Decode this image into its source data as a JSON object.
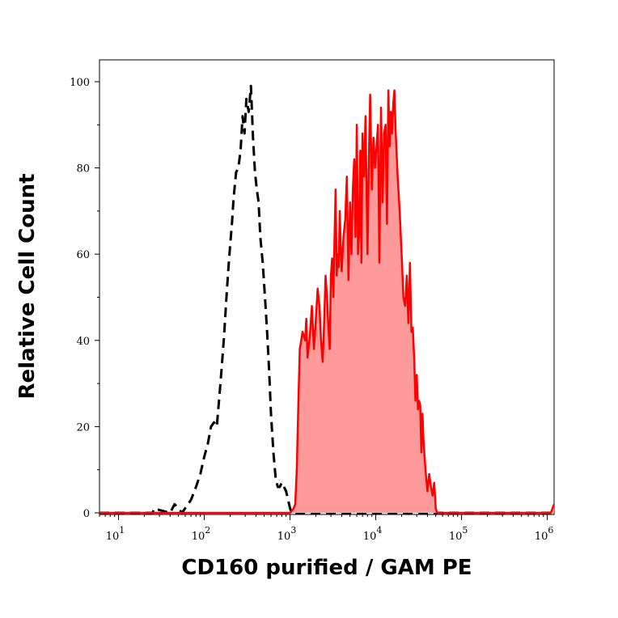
{
  "chart_data": {
    "type": "area",
    "xlabel": "CD160 purified / GAM PE",
    "ylabel": "Relative Cell Count",
    "x_scale": "log",
    "xlim": [
      6,
      1200000
    ],
    "ylim": [
      0,
      105
    ],
    "grid": false,
    "legend": "none",
    "x_ticks": [
      {
        "base": "10",
        "exp": "1",
        "value": 10
      },
      {
        "base": "10",
        "exp": "2",
        "value": 100
      },
      {
        "base": "10",
        "exp": "3",
        "value": 1000
      },
      {
        "base": "10",
        "exp": "4",
        "value": 10000
      },
      {
        "base": "10",
        "exp": "5",
        "value": 100000
      },
      {
        "base": "10",
        "exp": "6",
        "value": 1000000
      }
    ],
    "y_ticks": [
      {
        "label": "0",
        "value": 0
      },
      {
        "label": "20",
        "value": 20
      },
      {
        "label": "40",
        "value": 40
      },
      {
        "label": "60",
        "value": 60
      },
      {
        "label": "80",
        "value": 80
      },
      {
        "label": "100",
        "value": 100
      }
    ],
    "series": [
      {
        "style": "dashed",
        "color": "#000000",
        "x": [
          6,
          25,
          26,
          40,
          45,
          50,
          55,
          70,
          80,
          90,
          100,
          110,
          120,
          130,
          140,
          150,
          160,
          170,
          180,
          190,
          200,
          210,
          220,
          235,
          250,
          265,
          280,
          295,
          310,
          330,
          350,
          370,
          390,
          410,
          430,
          450,
          480,
          510,
          540,
          570,
          600,
          640,
          680,
          720,
          760,
          800,
          850,
          900,
          950,
          1000,
          1050,
          1100,
          1200,
          1300,
          1500,
          2000,
          3000,
          5000,
          8000,
          15000,
          20000,
          50000,
          1200000
        ],
        "y": [
          0,
          0,
          1,
          0,
          2,
          1,
          0,
          3,
          6,
          9,
          13,
          16,
          20,
          21,
          20,
          27,
          34,
          41,
          49,
          56,
          62,
          67,
          73,
          79,
          80,
          84,
          92,
          88,
          96,
          93,
          99,
          87,
          79,
          75,
          72,
          64,
          58,
          50,
          42,
          33,
          23,
          14,
          8,
          6,
          6,
          7,
          6,
          5,
          3,
          1,
          0,
          0,
          0,
          0,
          0,
          0,
          0,
          0,
          0,
          0,
          0,
          0,
          0
        ]
      },
      {
        "style": "filled",
        "color": "#ff0000",
        "fill": "#ff9a9a",
        "x": [
          6,
          1000,
          1100,
          1150,
          1200,
          1250,
          1300,
          1350,
          1400,
          1500,
          1550,
          1600,
          1700,
          1800,
          1900,
          2000,
          2100,
          2200,
          2300,
          2400,
          2500,
          2600,
          2700,
          2800,
          2900,
          3000,
          3100,
          3200,
          3300,
          3400,
          3500,
          3600,
          3700,
          3800,
          3900,
          4000,
          4200,
          4400,
          4600,
          4800,
          5000,
          5200,
          5400,
          5600,
          5800,
          6000,
          6200,
          6400,
          6600,
          6800,
          7000,
          7300,
          7600,
          8000,
          8300,
          8600,
          9000,
          9400,
          9800,
          10200,
          10600,
          11000,
          11500,
          12000,
          12500,
          13000,
          13500,
          14000,
          14500,
          15000,
          15500,
          16000,
          16500,
          17000,
          18000,
          19000,
          20000,
          21000,
          22000,
          23000,
          24000,
          25000,
          26000,
          27000,
          28000,
          29000,
          30000,
          31000,
          32000,
          33000,
          34000,
          35000,
          36000,
          38000,
          40000,
          42000,
          44000,
          46000,
          48000,
          50000,
          52000,
          55000,
          60000,
          80000,
          95000,
          100000,
          105000,
          120000,
          150000,
          170000,
          180000,
          190000,
          200000,
          215000,
          230000,
          300000,
          500000,
          1000000,
          1100000,
          1200000
        ],
        "y": [
          0,
          0,
          1,
          2,
          10,
          25,
          38,
          40,
          42,
          40,
          45,
          36,
          41,
          48,
          38,
          45,
          52,
          48,
          40,
          35,
          44,
          55,
          50,
          43,
          38,
          55,
          59,
          50,
          63,
          75,
          55,
          60,
          57,
          70,
          62,
          56,
          64,
          68,
          78,
          54,
          72,
          60,
          75,
          82,
          64,
          90,
          60,
          65,
          84,
          58,
          88,
          78,
          92,
          60,
          82,
          97,
          75,
          87,
          80,
          85,
          90,
          58,
          94,
          72,
          88,
          90,
          67,
          98,
          85,
          93,
          88,
          95,
          98,
          89,
          78,
          70,
          60,
          50,
          48,
          55,
          44,
          58,
          42,
          43,
          36,
          26,
          32,
          24,
          26,
          25,
          14,
          23,
          17,
          10,
          5,
          9,
          6,
          4,
          7,
          1,
          0,
          0,
          0,
          0,
          0,
          0,
          0,
          0,
          0,
          0,
          0,
          0,
          0,
          0,
          0,
          0,
          0,
          0,
          0,
          2
        ]
      }
    ]
  }
}
